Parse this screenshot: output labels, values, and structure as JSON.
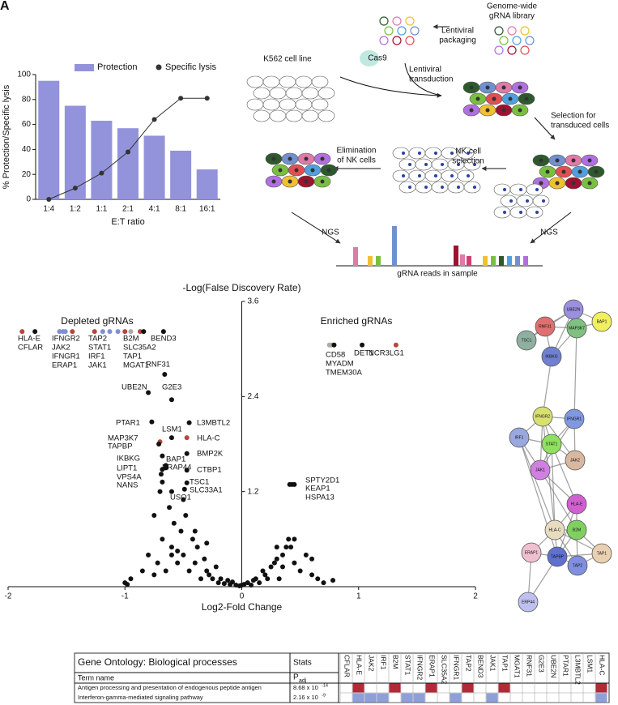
{
  "panel_label": "A",
  "chart_data": [
    {
      "type": "combo",
      "y_title": "% Protection/Specific lysis",
      "x_title": "E:T ratio",
      "categories": [
        "1:4",
        "1:2",
        "1:1",
        "2:1",
        "4:1",
        "8:1",
        "16:1"
      ],
      "series": [
        {
          "name": "Protection",
          "type": "bar",
          "color": "#9393dc",
          "values": [
            95,
            75,
            63,
            57,
            51,
            39,
            24
          ]
        },
        {
          "name": "Specific lysis",
          "type": "line",
          "color": "#333333",
          "values": [
            0,
            9,
            21,
            38,
            64,
            81,
            81
          ]
        }
      ],
      "ylim": [
        0,
        100
      ],
      "yticks": [
        0,
        20,
        40,
        60,
        80,
        100
      ]
    },
    {
      "type": "scatter",
      "y_title": "-Log(False Discovery Rate)",
      "x_title": "Log2-Fold Change",
      "annotations": [
        "Depleted gRNAs",
        "Enriched gRNAs"
      ],
      "xlim": [
        -2,
        2
      ],
      "xticks": [
        -2,
        -1,
        0,
        1,
        2
      ],
      "ylim": [
        0,
        3.6
      ],
      "yticks": [
        1.2,
        2.4,
        3.6
      ],
      "series": [
        {
          "labels": [
            "HLA-E",
            "CFLAR",
            "IFNGR2",
            "JAK2",
            "IFNGR1",
            "ERAP1",
            "TAP2",
            "STAT1",
            "IRF1",
            "JAK1",
            "B2M",
            "SLC35A2",
            "TAP1",
            "MGAT1",
            "BEND3",
            "RNF31",
            "UBE2N",
            "G2E3",
            "PTAR1",
            "L3MBTL2",
            "LSM1",
            "MAP3K7",
            "TAPBP",
            "HLA-C",
            "BMP2K",
            "IKBKG",
            "BAP1",
            "ERAP44",
            "CTBP1",
            "LIPT1",
            "VPS4A",
            "TSC1",
            "NANS",
            "SLC33A1",
            "USO1",
            "DET1",
            "CD58",
            "MYADM",
            "TMEM30A",
            "NCR3LG1",
            "SPTY2D1",
            "KEAP1",
            "HSPA13"
          ],
          "x": [
            -1.88,
            -1.77,
            -1.56,
            -1.53,
            -1.51,
            -1.45,
            -1.26,
            -1.19,
            -1.13,
            -1.06,
            -1.0,
            -0.95,
            -0.87,
            -0.84,
            -0.67,
            -0.66,
            -0.8,
            -0.6,
            -0.77,
            -0.45,
            -0.6,
            -0.7,
            -0.71,
            -0.47,
            -0.47,
            -0.68,
            -0.65,
            -0.65,
            -0.47,
            -0.68,
            -0.69,
            -0.47,
            -0.68,
            -0.49,
            -0.6,
            1.03,
            0.77,
            0.75,
            0.79,
            1.32,
            0.41,
            0.43,
            0.45
          ],
          "values": [
            3.22,
            3.22,
            3.22,
            3.22,
            3.22,
            3.22,
            3.22,
            3.22,
            3.22,
            3.22,
            3.22,
            3.22,
            3.22,
            3.22,
            3.22,
            2.68,
            2.45,
            2.36,
            2.08,
            2.07,
            1.88,
            1.83,
            1.8,
            1.88,
            1.68,
            1.65,
            1.53,
            1.5,
            1.47,
            1.48,
            1.42,
            1.31,
            1.32,
            1.23,
            1.2,
            3.05,
            3.05,
            3.05,
            3.05,
            3.05,
            1.29,
            1.29,
            1.29
          ],
          "colors": [
            "#b5473f",
            "#111111",
            "#7f8fd6",
            "#7f8fd6",
            "#7f8fd6",
            "#b5473f",
            "#b5473f",
            "#7f8fd6",
            "#7f8fd6",
            "#7f8fd6",
            "#b5473f",
            "#aaaaaa",
            "#b5473f",
            "#111111",
            "#111111",
            "#111111",
            "#111111",
            "#111111",
            "#111111",
            "#111111",
            "#111111",
            "#b5473f",
            "#111111",
            "#b5473f",
            "#111111",
            "#111111",
            "#111111",
            "#111111",
            "#111111",
            "#111111",
            "#111111",
            "#111111",
            "#111111",
            "#111111",
            "#111111",
            "#111111",
            "#8dc06a",
            "#aaaaaa",
            "#111111",
            "#b5473f",
            "#111111",
            "#111111",
            "#111111"
          ]
        },
        {
          "color": "#111111",
          "x": [
            -1.0,
            -0.98,
            -0.95,
            -0.8,
            -0.75,
            -0.72,
            -0.7,
            -0.68,
            -0.65,
            -0.62,
            -0.6,
            -0.58,
            -0.55,
            -0.52,
            -0.5,
            -0.48,
            -0.45,
            -0.42,
            -0.4,
            -0.38,
            -0.35,
            -0.32,
            -0.3,
            -0.28,
            -0.25,
            -0.22,
            -0.2,
            -0.18,
            -0.15,
            -0.12,
            -0.1,
            -0.08,
            -0.05,
            -0.02,
            0,
            0.02,
            0.05,
            0.08,
            0.1,
            0.12,
            0.15,
            0.18,
            0.2,
            0.22,
            0.25,
            0.28,
            0.3,
            0.32,
            0.35,
            0.38,
            0.4,
            0.42,
            0.45,
            0.5,
            0.55,
            0.6,
            0.65,
            0.7,
            0.78,
            -0.85,
            -0.6,
            -0.5,
            -0.4,
            -0.3,
            -0.55,
            0.35,
            0.3,
            0.45,
            0.6,
            -0.75
          ],
          "values": [
            0.05,
            0.03,
            0.1,
            0.4,
            0.9,
            0.3,
            1.2,
            0.6,
            0.2,
            1.0,
            0.5,
            0.8,
            0.3,
            0.7,
            0.4,
            0.9,
            0.2,
            0.6,
            0.3,
            0.5,
            0.1,
            0.35,
            0.2,
            0.15,
            0.1,
            0.25,
            0.05,
            0.1,
            0.04,
            0.08,
            0.03,
            0.06,
            0.02,
            0.01,
            0.02,
            0.03,
            0.05,
            0.02,
            0.08,
            0.1,
            0.05,
            0.2,
            0.15,
            0.1,
            0.25,
            0.3,
            0.35,
            0.1,
            0.4,
            0.5,
            0.6,
            0.5,
            0.3,
            0.2,
            0.4,
            0.15,
            0.1,
            0.05,
            0.08,
            0.2,
            0.4,
            1.1,
            0.7,
            0.55,
            0.45,
            0.25,
            0.5,
            0.6,
            0.35,
            0.15
          ]
        }
      ]
    }
  ],
  "diagram": {
    "library": [
      "Genome-wide",
      "gRNA library"
    ],
    "packaging": [
      "Lentiviral",
      "packaging"
    ],
    "cell_line": "K562 cell line",
    "cas9": "Cas9",
    "transduction": [
      "Lentiviral",
      "transduction"
    ],
    "selection": [
      "Selection for",
      "transduced cells"
    ],
    "elimination": [
      "Elimination",
      "of NK cells"
    ],
    "nk_selection": [
      "NK cell",
      "selection"
    ],
    "ngs_left": "NGS",
    "ngs_right": "NGS",
    "reads": "gRNA reads in sample"
  },
  "network": {
    "nodes": [
      {
        "label": "UBE2N",
        "color": "#9b8fe0"
      },
      {
        "label": "BAP1",
        "color": "#f0f060"
      },
      {
        "label": "RNF31",
        "color": "#e07070"
      },
      {
        "label": "MAP3K7",
        "color": "#80c080"
      },
      {
        "label": "TSC1",
        "color": "#8fb0a0"
      },
      {
        "label": "IKBKG",
        "color": "#7080d0"
      },
      {
        "label": "IFNGR2",
        "color": "#d8e070"
      },
      {
        "label": "IFNGR1",
        "color": "#8098e0"
      },
      {
        "label": "IRF1",
        "color": "#9aa8e0"
      },
      {
        "label": "STAT1",
        "color": "#90e060"
      },
      {
        "label": "JAK2",
        "color": "#d8b8a0"
      },
      {
        "label": "JAK1",
        "color": "#d080e0"
      },
      {
        "label": "HLA-E",
        "color": "#d060d0"
      },
      {
        "label": "HLA-C",
        "color": "#e8dcc0"
      },
      {
        "label": "B2M",
        "color": "#80d060"
      },
      {
        "label": "ERAP1",
        "color": "#f0c0d0"
      },
      {
        "label": "TAPBP",
        "color": "#6070d0"
      },
      {
        "label": "TAP1",
        "color": "#e8d0b0"
      },
      {
        "label": "TAP2",
        "color": "#8090e0"
      },
      {
        "label": "ERP44",
        "color": "#c0c0f0"
      }
    ]
  },
  "table": {
    "title": "Gene Ontology: Biological processes",
    "stats_header": "Stats",
    "term_header": "Term name",
    "p_symbol": "P",
    "p_subscript": "adj",
    "genes": [
      "CFLAR",
      "HLA-E",
      "JAK2",
      "IRF1",
      "B2M",
      "STAT1",
      "IFNGR2",
      "ERAP1",
      "SLC35A2",
      "IFNGR1",
      "TAP2",
      "BEND3",
      "JAK1",
      "TAP1",
      "MGAT1",
      "RNF31",
      "G2E3",
      "UBE2N",
      "PTAR1",
      "L3MBTL2",
      "LSM1",
      "HLA-C"
    ],
    "rows": [
      {
        "term": "Antigen processing and presentation of endogenous peptide antigen",
        "p_mantissa": "8.68 x 10",
        "p_exponent": "-14",
        "color": "#b02a37",
        "members": [
          0,
          1,
          0,
          0,
          1,
          0,
          0,
          1,
          0,
          0,
          1,
          0,
          0,
          1,
          0,
          0,
          0,
          0,
          0,
          0,
          0,
          1
        ]
      },
      {
        "term": "Interferon-gamma-mediated signaling pathway",
        "p_mantissa": "2.16 x 10",
        "p_exponent": "-9",
        "color": "#8fa0d8",
        "members": [
          0,
          1,
          1,
          1,
          0,
          1,
          1,
          0,
          0,
          1,
          0,
          0,
          1,
          0,
          0,
          0,
          0,
          0,
          0,
          0,
          0,
          1
        ]
      }
    ]
  }
}
